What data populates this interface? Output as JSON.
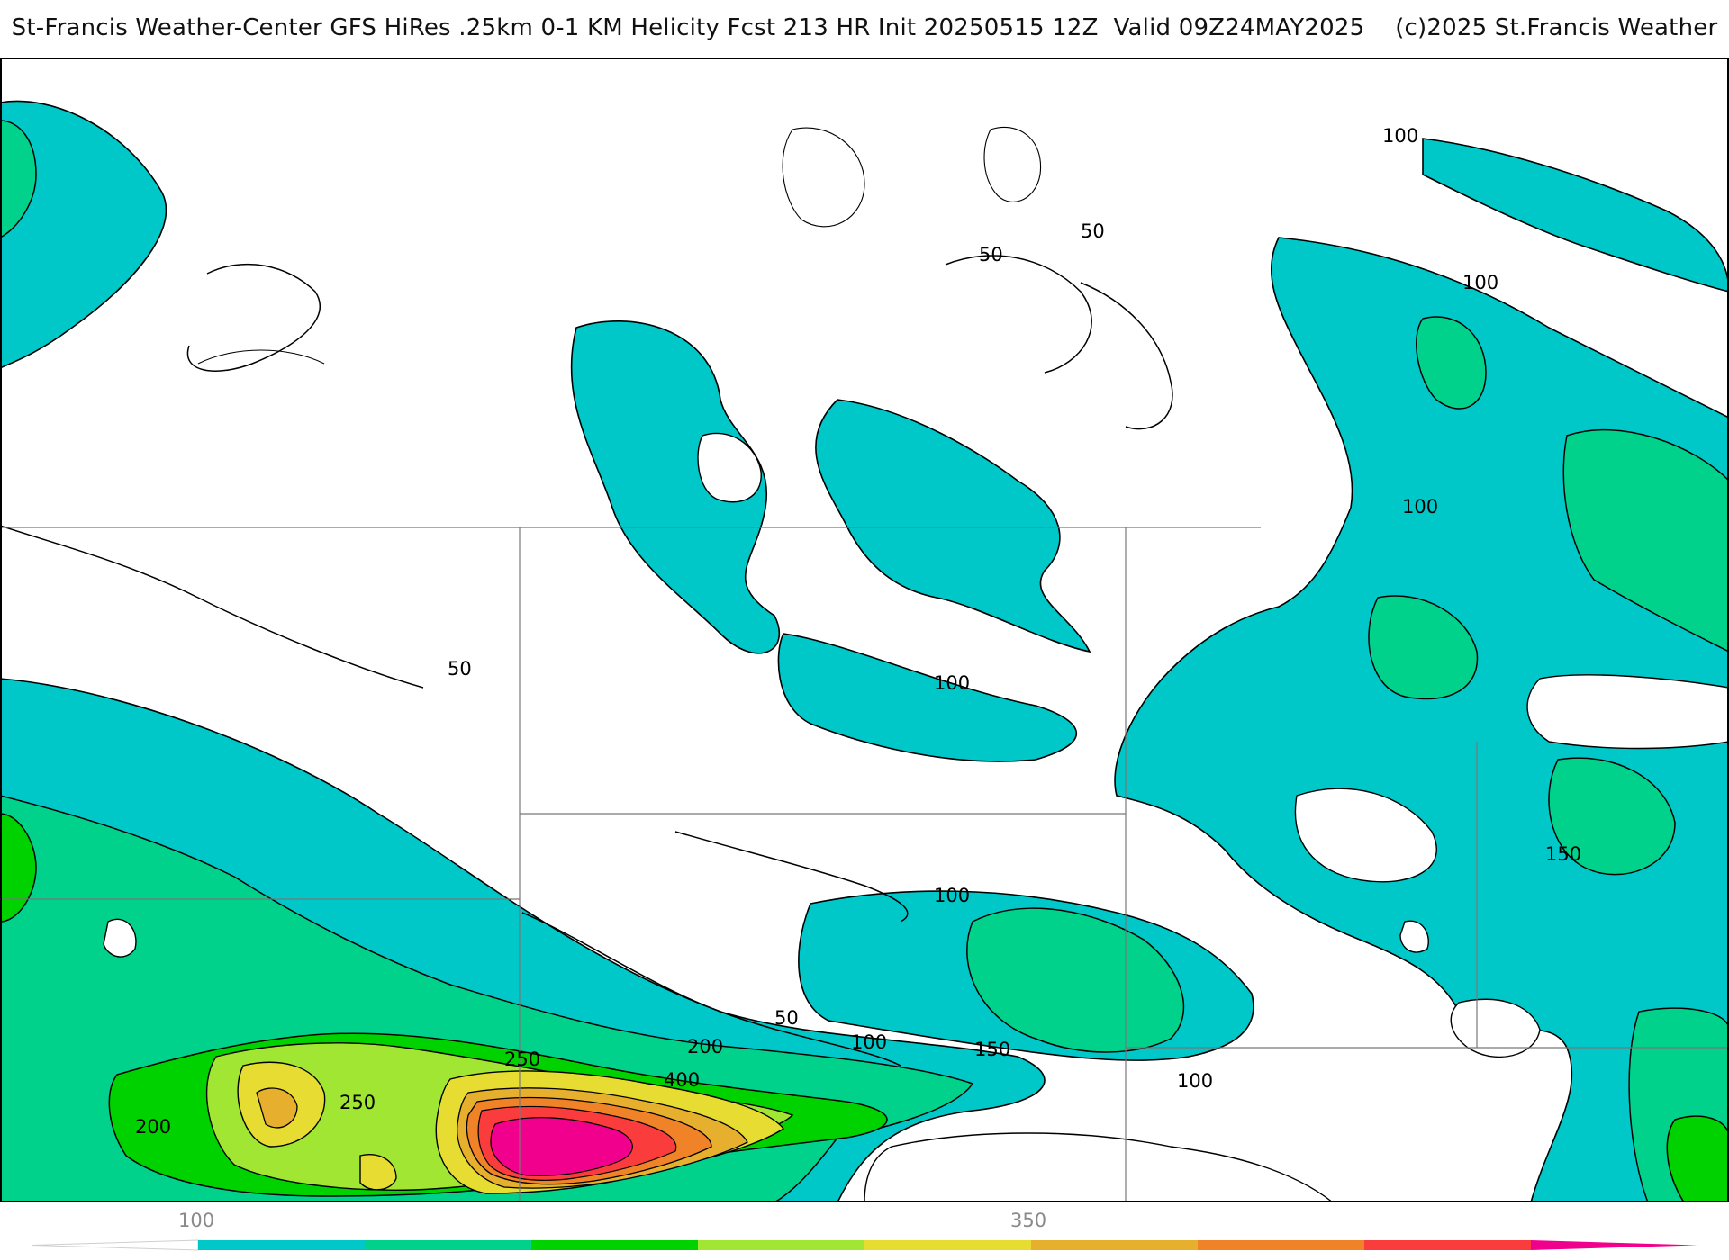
{
  "header": {
    "title": "St-Francis Weather-Center GFS HiRes .25km 0-1 KM Helicity Fcst 213 HR Init 20250515 12Z  Valid 09Z24MAY2025    (c)2025 St.Francis Weather"
  },
  "map": {
    "contour_labels": [
      "100",
      "50",
      "50",
      "100",
      "100",
      "50",
      "100",
      "100",
      "150",
      "50",
      "200",
      "100",
      "150",
      "250",
      "400",
      "250",
      "200",
      "100"
    ]
  },
  "legend": {
    "tick_labels": [
      "100",
      "350"
    ],
    "colors": [
      "#00c8c8",
      "#00d28c",
      "#00d200",
      "#a0e632",
      "#e6dc32",
      "#e6af2d",
      "#f08228",
      "#fa3c3c",
      "#f0008c"
    ]
  }
}
